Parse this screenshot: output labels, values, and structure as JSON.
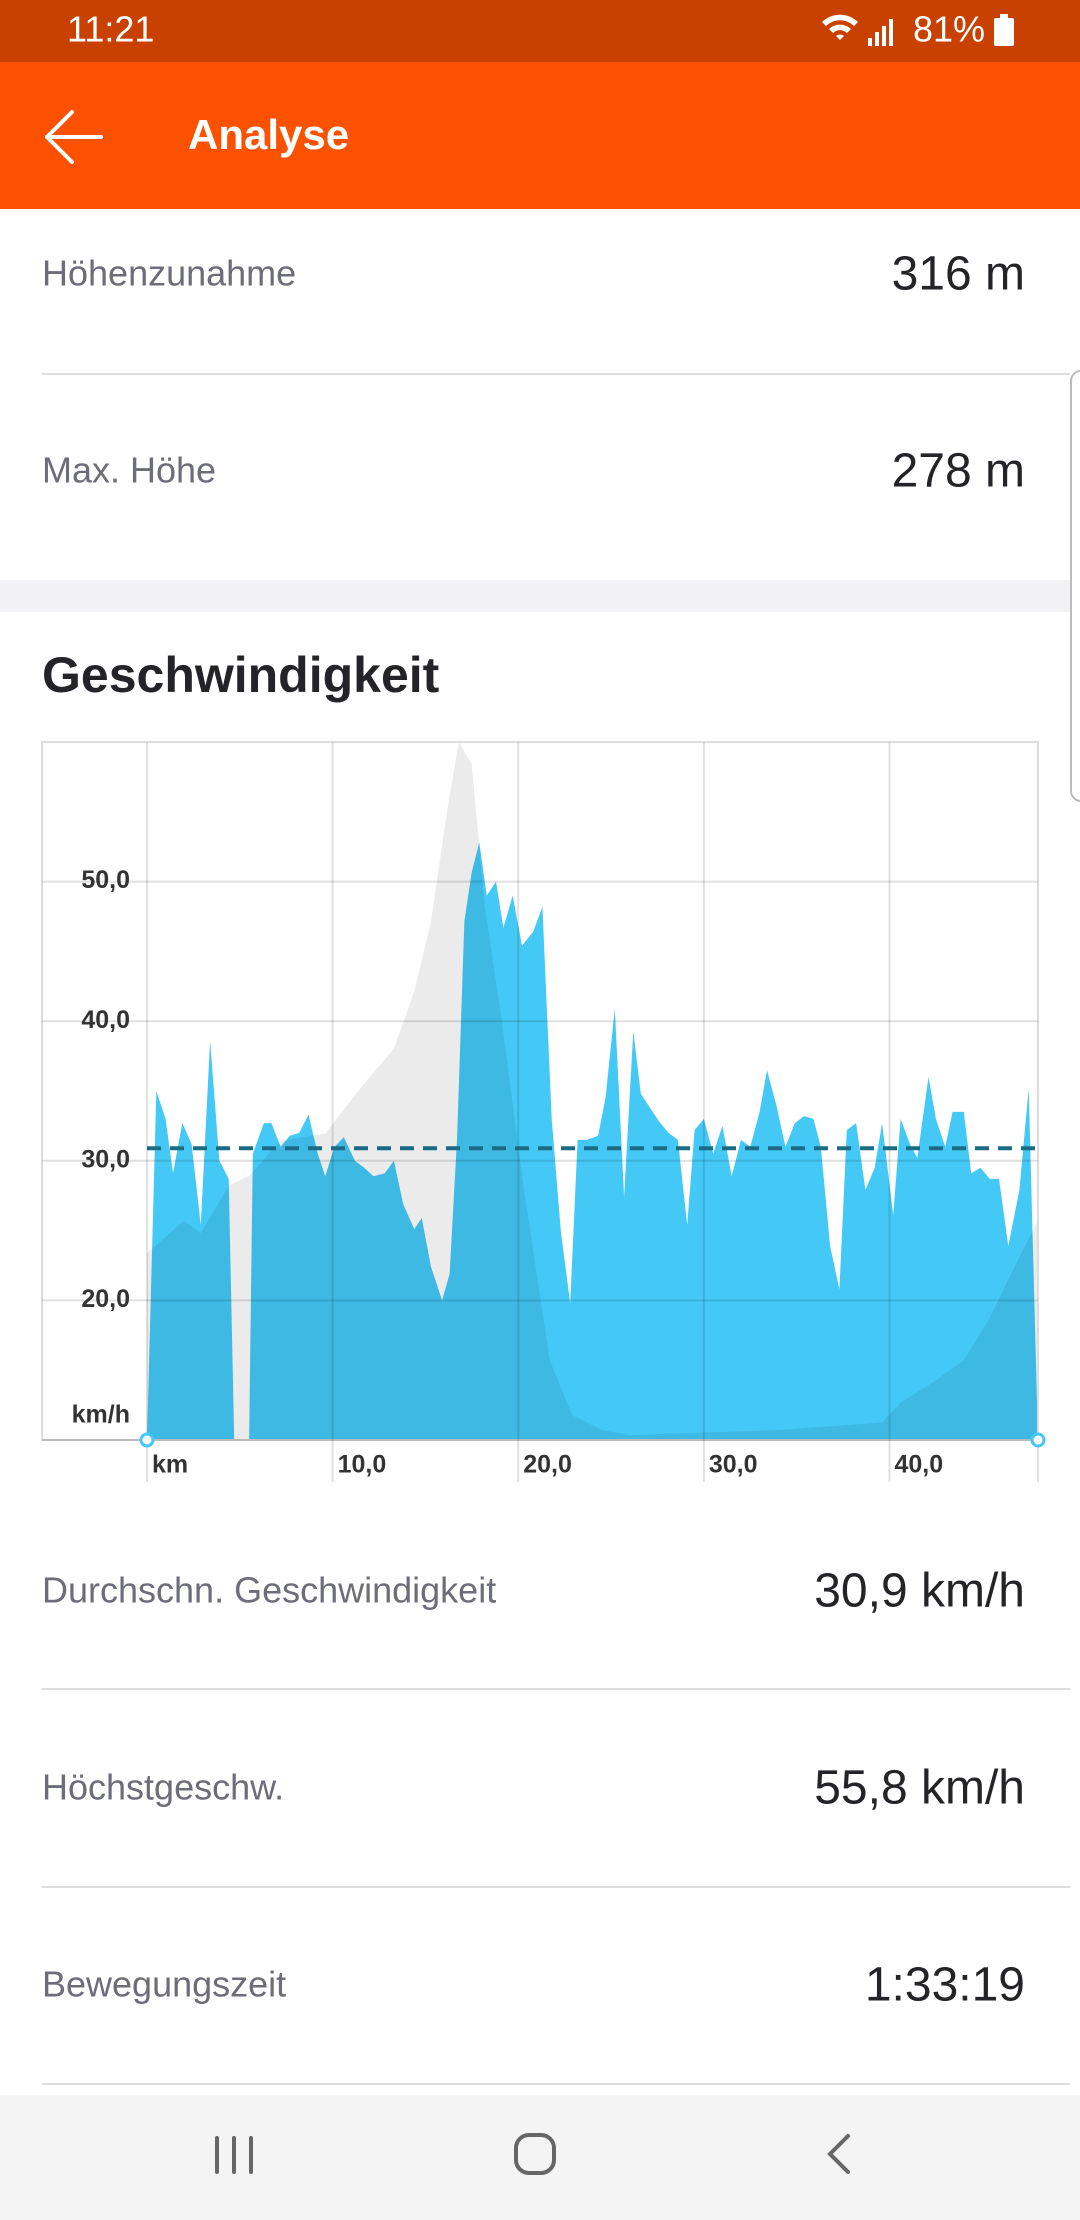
{
  "status_bar": {
    "time": "11:21",
    "battery": "81%"
  },
  "header": {
    "title": "Analyse"
  },
  "stats_top": [
    {
      "label": "Höhenzunahme",
      "value": "316 m"
    },
    {
      "label": "Max. Höhe",
      "value": "278 m"
    }
  ],
  "speed": {
    "title": "Geschwindigkeit",
    "chart": {
      "type": "area",
      "xlim": [
        0,
        48
      ],
      "ylim": [
        10,
        60
      ],
      "y2lim": [
        0,
        280
      ],
      "xticks": [
        {
          "value": 0,
          "label": "km"
        },
        {
          "value": 10,
          "label": "10,0"
        },
        {
          "value": 20,
          "label": "20,0"
        },
        {
          "value": 30,
          "label": "30,0"
        },
        {
          "value": 40,
          "label": "40,0"
        }
      ],
      "yticks": [
        {
          "value": 10,
          "label": "km/h"
        },
        {
          "value": 20,
          "label": "20,0"
        },
        {
          "value": 30,
          "label": "30,0"
        },
        {
          "value": 40,
          "label": "40,0"
        },
        {
          "value": 50,
          "label": "50,0"
        }
      ],
      "grid": true,
      "average_line": 30.9,
      "average_color": "#1b6b84",
      "series": [
        {
          "color": "#44c9f7",
          "x": [
            0,
            0.5,
            1.0,
            1.4,
            1.9,
            2.4,
            2.9,
            3.4,
            3.9,
            4.4,
            4.7,
            5.5,
            5.7,
            6.3,
            6.7,
            7.2,
            7.7,
            8.2,
            8.7,
            9.2,
            9.6,
            10.1,
            10.6,
            11.2,
            11.7,
            12.2,
            12.8,
            13.3,
            13.8,
            14.4,
            14.8,
            15.3,
            15.9,
            16.3,
            16.7,
            17.1,
            17.5,
            17.9,
            18.3,
            18.8,
            19.2,
            19.7,
            20.2,
            20.8,
            21.3,
            21.8,
            22.3,
            22.8,
            23.2,
            23.7,
            24.3,
            24.7,
            25.2,
            25.7,
            26.2,
            26.6,
            27.1,
            27.6,
            28.1,
            28.6,
            29.1,
            29.5,
            30.0,
            30.5,
            31.0,
            31.5,
            32.0,
            32.5,
            33.0,
            33.4,
            33.9,
            34.4,
            34.9,
            35.4,
            35.9,
            36.3,
            36.8,
            37.3,
            37.7,
            38.2,
            38.7,
            39.2,
            39.6,
            40.2,
            40.6,
            41.1,
            41.5,
            42.1,
            42.5,
            43.0,
            43.4,
            44.0,
            44.4,
            44.9,
            45.4,
            45.9,
            46.4,
            47.0,
            47.5,
            48.0
          ],
          "values": [
            10,
            35.0,
            33.0,
            29.1,
            32.7,
            31.2,
            25.4,
            38.6,
            30.0,
            28.7,
            10,
            10,
            30.5,
            32.7,
            32.7,
            31.0,
            31.8,
            32.0,
            33.3,
            30.5,
            28.9,
            31.0,
            31.7,
            30.0,
            29.5,
            28.9,
            29.1,
            30.0,
            26.9,
            25.1,
            25.9,
            22.4,
            20.0,
            21.9,
            31.5,
            47.2,
            50.7,
            52.8,
            49.0,
            50.0,
            46.7,
            49.0,
            45.4,
            46.4,
            48.2,
            33.0,
            24.9,
            19.8,
            31.5,
            31.5,
            31.8,
            34.5,
            40.9,
            27.4,
            39.3,
            34.8,
            33.8,
            32.8,
            32.0,
            31.5,
            25.4,
            32.2,
            33.0,
            30.5,
            32.5,
            28.9,
            31.5,
            31.0,
            33.5,
            36.5,
            34.0,
            31.0,
            32.7,
            33.2,
            33.0,
            31.0,
            23.9,
            20.8,
            32.2,
            32.7,
            27.9,
            29.5,
            32.7,
            26.1,
            33.0,
            31.2,
            30.2,
            36.0,
            33.0,
            31.0,
            33.5,
            33.5,
            29.1,
            29.5,
            28.7,
            28.7,
            23.9,
            27.9,
            35.2,
            10
          ]
        },
        {
          "color": "rgba(0,0,0,0.08)",
          "axis": "y2",
          "x": [
            0,
            2,
            2.9,
            4.4,
            5.5,
            7.2,
            9.6,
            11.7,
            13.3,
            14.4,
            15.3,
            16.2,
            16.8,
            17.5,
            18.2,
            19.1,
            20.3,
            21.7,
            22.9,
            24.5,
            26,
            34,
            39.6,
            40.6,
            42.5,
            44.0,
            45.4,
            46.9,
            48.0
          ],
          "values": [
            75,
            88,
            83,
            102,
            106,
            120,
            123,
            143,
            157,
            180,
            208,
            254,
            280,
            271,
            214,
            169,
            101,
            32,
            10,
            4,
            2,
            4,
            7,
            15,
            24,
            32,
            49,
            72,
            88
          ]
        }
      ]
    },
    "stats": [
      {
        "label": "Durchschn. Geschwindigkeit",
        "value": "30,9 km/h"
      },
      {
        "label": "Höchstgeschw.",
        "value": "55,8 km/h"
      },
      {
        "label": "Bewegungszeit",
        "value": "1:33:19"
      }
    ]
  }
}
